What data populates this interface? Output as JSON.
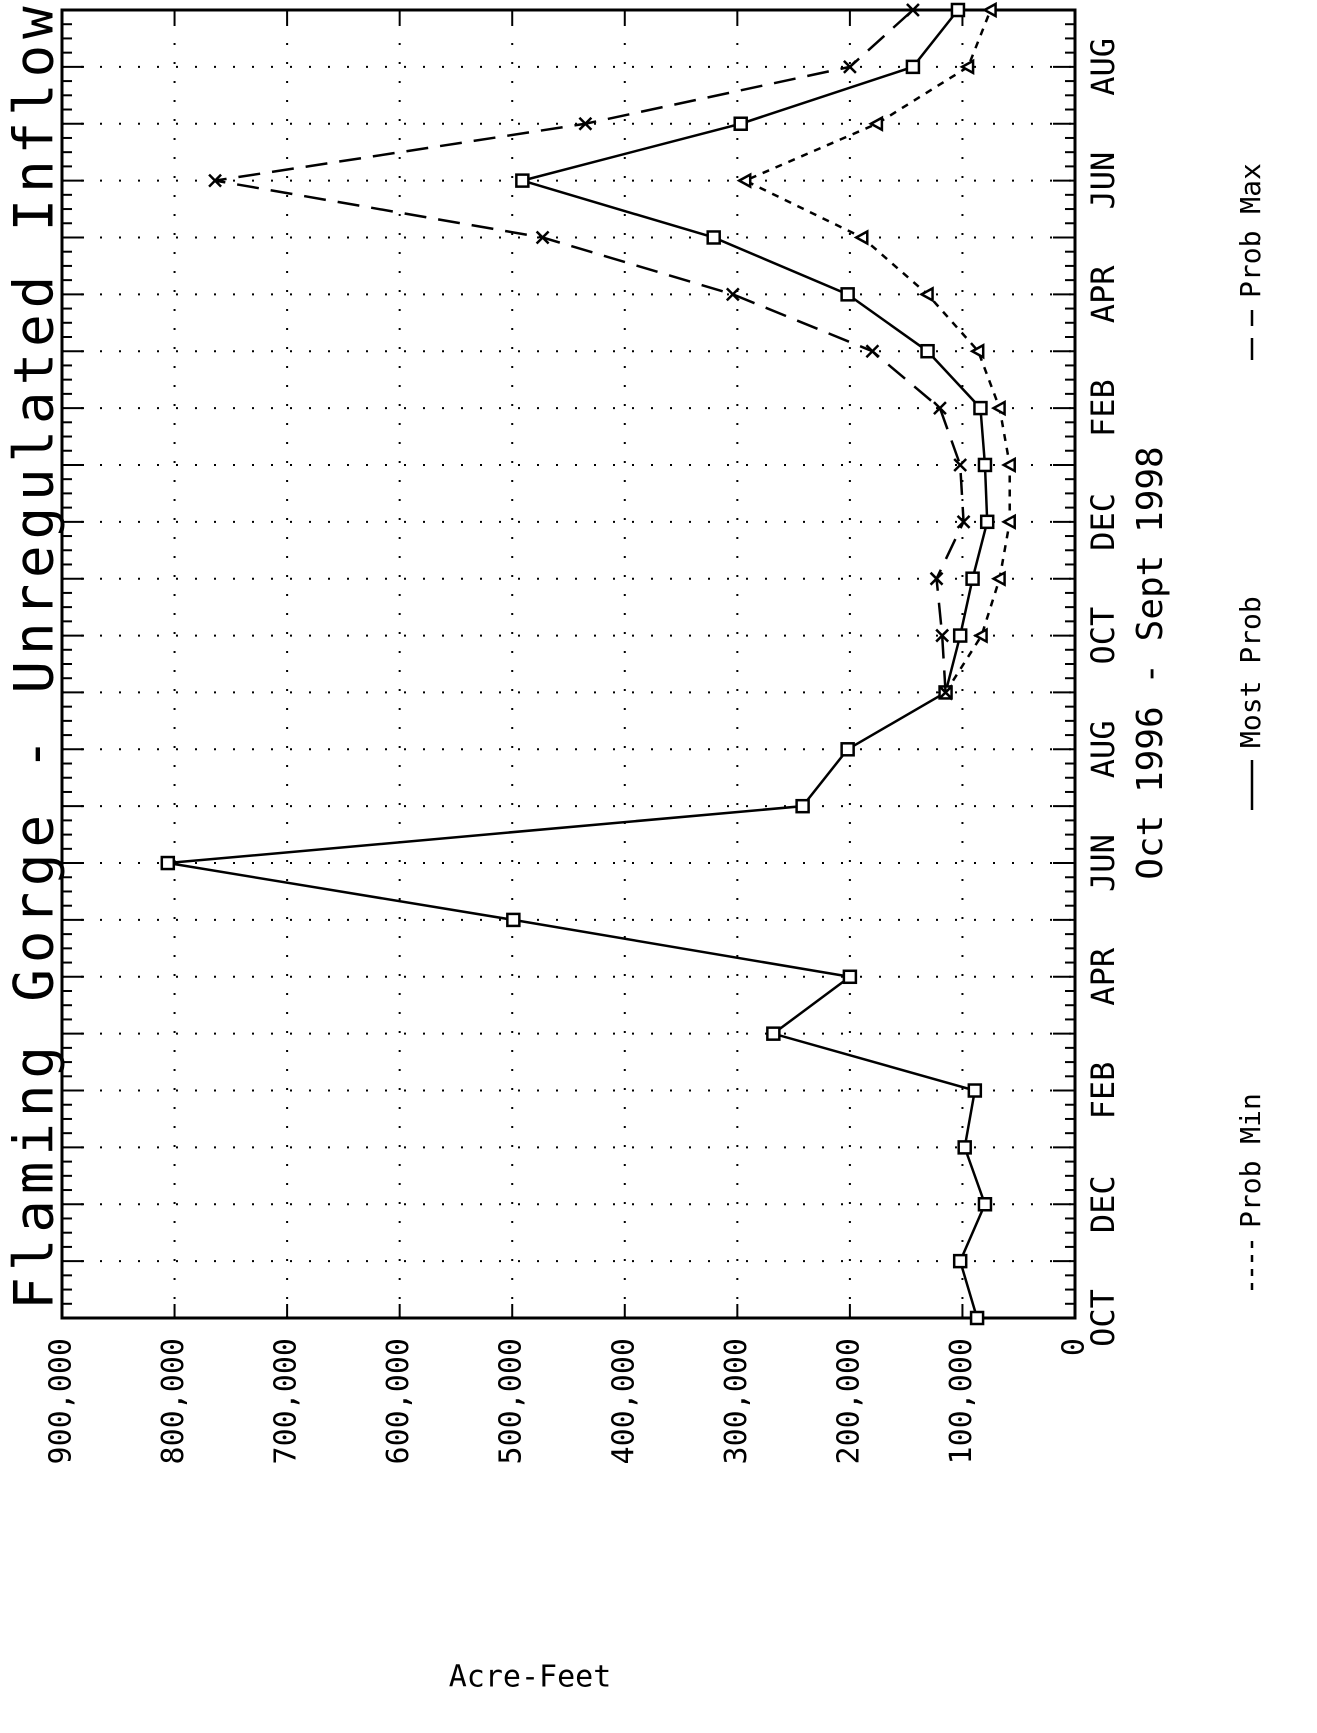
{
  "chart_data": {
    "type": "line",
    "title": "Flaming Gorge - Unregulated Inflow",
    "x_label": "Oct 1996 - Sept 1998",
    "y_label": "Acre-Feet",
    "categories": [
      "OCT",
      null,
      "DEC",
      null,
      "FEB",
      null,
      "APR",
      null,
      "JUN",
      null,
      "AUG",
      null,
      "OCT",
      null,
      "DEC",
      null,
      "FEB",
      null,
      "APR",
      null,
      "JUN",
      null,
      "AUG",
      null
    ],
    "ylim": [
      0,
      900000
    ],
    "yticks": [
      0,
      {
        "value": 100000,
        "label": "100,000"
      },
      {
        "value": 200000,
        "label": "200,000"
      },
      {
        "value": 300000,
        "label": "300,000"
      },
      {
        "value": 400000,
        "label": "400,000"
      },
      {
        "value": 500000,
        "label": "500,000"
      },
      {
        "value": 600000,
        "label": "600,000"
      },
      {
        "value": 700000,
        "label": "700,000"
      },
      {
        "value": 800000,
        "label": "800,000"
      },
      {
        "value": 900000,
        "label": "900,000"
      }
    ],
    "grid": true,
    "series": [
      {
        "name": "Prob Min",
        "color": "#000000",
        "line_style": "dotted",
        "marker": "triangle",
        "values": [
          null,
          null,
          null,
          null,
          null,
          null,
          null,
          null,
          null,
          null,
          null,
          115000,
          83000,
          67000,
          58000,
          58000,
          67000,
          86000,
          131000,
          189000,
          293000,
          176000,
          95000,
          75000
        ]
      },
      {
        "name": "Most Prob",
        "color": "#000000",
        "line_style": "solid",
        "marker": "square",
        "values": [
          87000,
          102000,
          80000,
          98000,
          89000,
          268000,
          200000,
          499000,
          806000,
          242000,
          202000,
          115000,
          102000,
          91000,
          78000,
          80000,
          84000,
          131000,
          202000,
          321000,
          491000,
          297000,
          144000,
          104000
        ]
      },
      {
        "name": "Prob Max",
        "color": "#000000",
        "line_style": "dashed",
        "marker": "x",
        "values": [
          null,
          null,
          null,
          null,
          null,
          null,
          null,
          null,
          null,
          null,
          null,
          115000,
          118000,
          123000,
          99000,
          102000,
          120000,
          180000,
          304000,
          473000,
          764000,
          435000,
          200000,
          144000
        ]
      }
    ]
  }
}
